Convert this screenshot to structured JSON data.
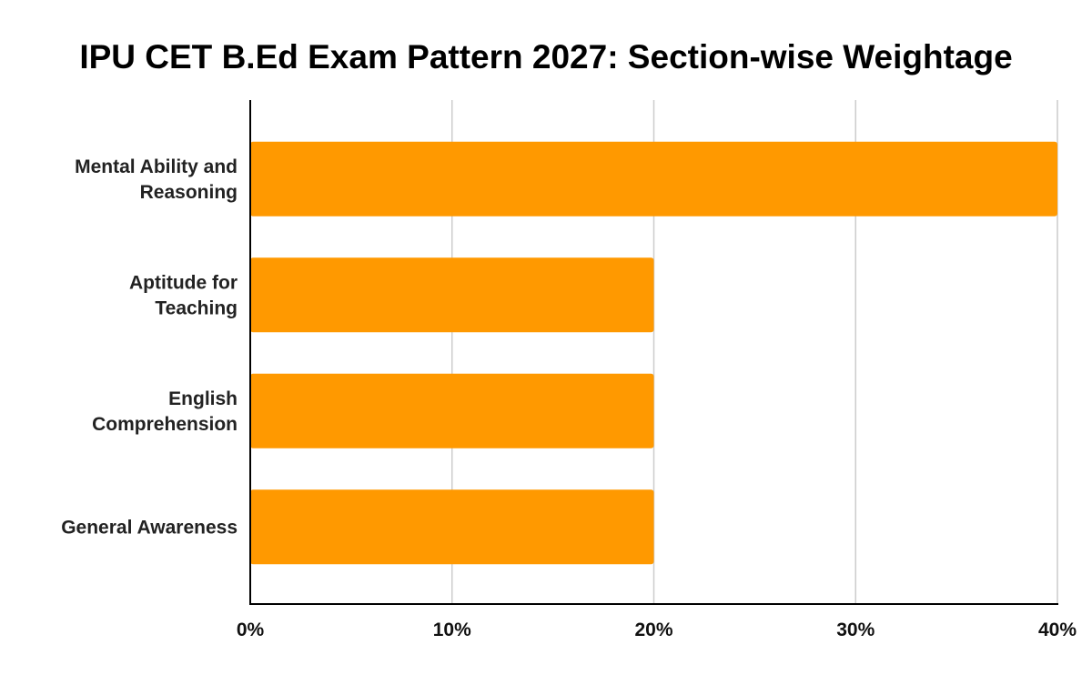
{
  "chart_data": {
    "type": "bar",
    "orientation": "horizontal",
    "title": "IPU CET B.Ed Exam Pattern 2027: Section-wise Weightage",
    "xlabel": "",
    "ylabel": "",
    "categories": [
      [
        "Mental Ability and",
        "Reasoning"
      ],
      [
        "Aptitude for",
        "Teaching"
      ],
      [
        "English",
        "Comprehension"
      ],
      [
        "General Awareness"
      ]
    ],
    "values": [
      40,
      20,
      20,
      20
    ],
    "xlim": [
      0,
      40
    ],
    "ticks": [
      0,
      10,
      20,
      30,
      40
    ],
    "tick_labels": [
      "0%",
      "10%",
      "20%",
      "30%",
      "40%"
    ],
    "bar_color": "#ff9900",
    "grid": true,
    "legend": "none"
  }
}
